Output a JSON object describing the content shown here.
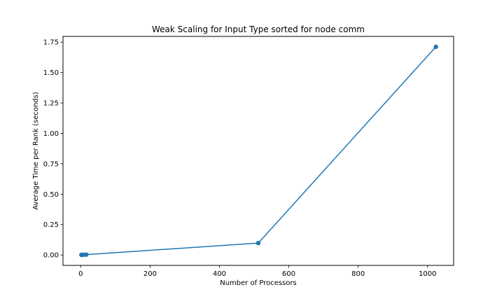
{
  "chart_data": {
    "type": "line",
    "title": "Weak Scaling for Input Type sorted for node comm",
    "xlabel": "Number of Processors",
    "ylabel": "Average Time per Rank (seconds)",
    "xlim": [
      -51.1,
      1075.1
    ],
    "ylim": [
      -0.0856,
      1.7974
    ],
    "xticks": [
      0,
      200,
      400,
      600,
      800,
      1000
    ],
    "xtick_labels": [
      "0",
      "200",
      "400",
      "600",
      "800",
      "1000"
    ],
    "yticks": [
      0.0,
      0.25,
      0.5,
      0.75,
      1.0,
      1.25,
      1.5,
      1.75
    ],
    "ytick_labels": [
      "0.00",
      "0.25",
      "0.50",
      "0.75",
      "1.00",
      "1.25",
      "1.50",
      "1.75"
    ],
    "grid": false,
    "series": [
      {
        "x": [
          2,
          4,
          8,
          16,
          512,
          1024
        ],
        "y": [
          0.001,
          0.001,
          0.002,
          0.003,
          0.098,
          1.712
        ],
        "color": "#1f77b4",
        "marker": "circle"
      }
    ]
  }
}
